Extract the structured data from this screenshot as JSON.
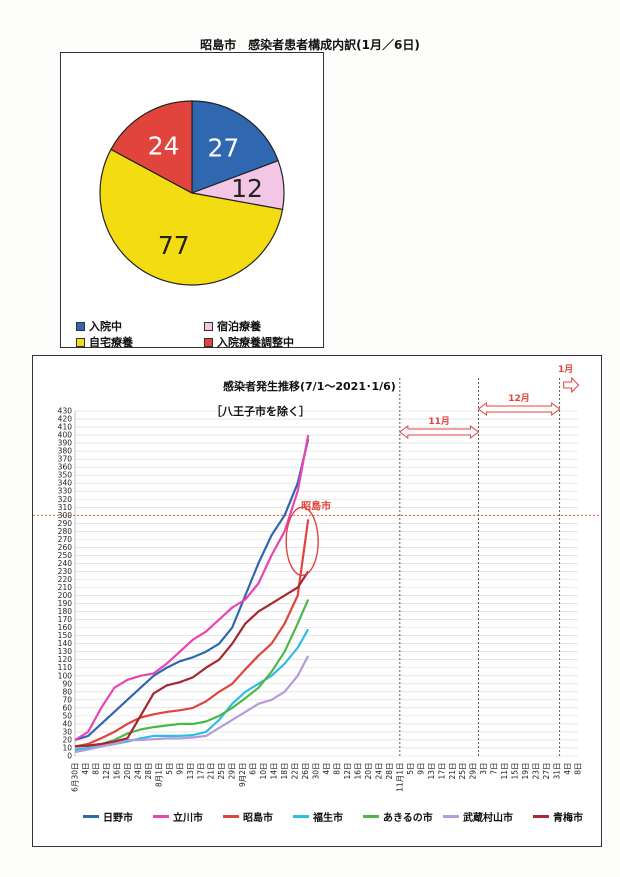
{
  "page_title": "昭島市　感染者患者構成内訳(1月／6日)",
  "chart_data": [
    {
      "type": "pie",
      "title": "昭島市　感染者患者構成内訳(1月／6日)",
      "slices": [
        {
          "label": "入院中",
          "value": 27,
          "color": "#2f67b1"
        },
        {
          "label": "宿泊療養",
          "value": 12,
          "color": "#f3c6e6"
        },
        {
          "label": "自宅療養",
          "value": 77,
          "color": "#f4dc12"
        },
        {
          "label": "入院療養調整中",
          "value": 24,
          "color": "#e0443c"
        }
      ]
    },
    {
      "type": "line",
      "title": "感染者発生推移(7/1～2021･1/6)",
      "subtitle": "［八王子市を除く］",
      "ylim": [
        0,
        430
      ],
      "y_ticks": [
        0,
        10,
        20,
        30,
        40,
        50,
        60,
        70,
        80,
        90,
        100,
        110,
        120,
        130,
        140,
        150,
        160,
        170,
        180,
        190,
        200,
        210,
        220,
        230,
        240,
        250,
        260,
        270,
        280,
        290,
        300,
        310,
        320,
        330,
        340,
        350,
        360,
        370,
        380,
        390,
        400,
        410,
        420,
        430
      ],
      "x_labels": [
        "6月30日",
        "4日",
        "8日",
        "12日",
        "16日",
        "20日",
        "24日",
        "28日",
        "8月1日",
        "5日",
        "9日",
        "13日",
        "17日",
        "21日",
        "25日",
        "29日",
        "9月2日",
        "6日",
        "10日",
        "14日",
        "18日",
        "22日",
        "26日",
        "30日",
        "4日",
        "8日",
        "12日",
        "16日",
        "20日",
        "24日",
        "28日",
        "11月1日",
        "5日",
        "9日",
        "13日",
        "17日",
        "21日",
        "25日",
        "29日",
        "3日",
        "7日",
        "11日",
        "15日",
        "19日",
        "23日",
        "27日",
        "31日",
        "4日",
        "8日"
      ],
      "month_annotations": [
        {
          "label": "11月"
        },
        {
          "label": "12月"
        },
        {
          "label": "1月"
        }
      ],
      "reference_line": {
        "y": 300,
        "color": "#e0443c"
      },
      "callout": {
        "label": "昭島市",
        "color": "#e0443c"
      },
      "series": [
        {
          "name": "日野市",
          "color": "#2f67b1",
          "points": [
            [
              0,
              20
            ],
            [
              5,
              25
            ],
            [
              10,
              40
            ],
            [
              15,
              55
            ],
            [
              20,
              70
            ],
            [
              25,
              85
            ],
            [
              30,
              100
            ],
            [
              35,
              110
            ],
            [
              40,
              118
            ],
            [
              45,
              123
            ],
            [
              50,
              130
            ],
            [
              55,
              140
            ],
            [
              60,
              160
            ],
            [
              65,
              200
            ],
            [
              70,
              240
            ],
            [
              75,
              275
            ],
            [
              80,
              300
            ],
            [
              85,
              340
            ],
            [
              89,
              395
            ]
          ]
        },
        {
          "name": "立川市",
          "color": "#e845b0",
          "points": [
            [
              0,
              20
            ],
            [
              5,
              30
            ],
            [
              10,
              60
            ],
            [
              15,
              85
            ],
            [
              20,
              95
            ],
            [
              25,
              100
            ],
            [
              30,
              103
            ],
            [
              35,
              115
            ],
            [
              40,
              130
            ],
            [
              45,
              145
            ],
            [
              50,
              155
            ],
            [
              55,
              170
            ],
            [
              60,
              185
            ],
            [
              65,
              195
            ],
            [
              70,
              215
            ],
            [
              75,
              250
            ],
            [
              80,
              280
            ],
            [
              85,
              330
            ],
            [
              89,
              400
            ]
          ]
        },
        {
          "name": "昭島市",
          "color": "#e0443c",
          "points": [
            [
              0,
              12
            ],
            [
              5,
              15
            ],
            [
              10,
              22
            ],
            [
              15,
              30
            ],
            [
              20,
              40
            ],
            [
              25,
              48
            ],
            [
              30,
              52
            ],
            [
              35,
              55
            ],
            [
              40,
              57
            ],
            [
              45,
              60
            ],
            [
              50,
              68
            ],
            [
              55,
              80
            ],
            [
              60,
              90
            ],
            [
              65,
              108
            ],
            [
              70,
              125
            ],
            [
              75,
              140
            ],
            [
              80,
              165
            ],
            [
              85,
              200
            ],
            [
              89,
              295
            ]
          ]
        },
        {
          "name": "福生市",
          "color": "#2dbde6",
          "points": [
            [
              0,
              8
            ],
            [
              5,
              10
            ],
            [
              10,
              12
            ],
            [
              15,
              15
            ],
            [
              20,
              18
            ],
            [
              25,
              22
            ],
            [
              30,
              25
            ],
            [
              35,
              25
            ],
            [
              40,
              25
            ],
            [
              45,
              26
            ],
            [
              50,
              30
            ],
            [
              55,
              45
            ],
            [
              60,
              65
            ],
            [
              65,
              80
            ],
            [
              70,
              90
            ],
            [
              75,
              100
            ],
            [
              80,
              115
            ],
            [
              85,
              135
            ],
            [
              89,
              158
            ]
          ]
        },
        {
          "name": "あきるの市",
          "color": "#4bb848",
          "points": [
            [
              0,
              12
            ],
            [
              5,
              13
            ],
            [
              10,
              15
            ],
            [
              15,
              20
            ],
            [
              20,
              28
            ],
            [
              25,
              33
            ],
            [
              30,
              36
            ],
            [
              35,
              38
            ],
            [
              40,
              40
            ],
            [
              45,
              40
            ],
            [
              50,
              43
            ],
            [
              55,
              50
            ],
            [
              60,
              60
            ],
            [
              65,
              72
            ],
            [
              70,
              85
            ],
            [
              75,
              105
            ],
            [
              80,
              130
            ],
            [
              85,
              165
            ],
            [
              89,
              195
            ]
          ]
        },
        {
          "name": "武蔵村山市",
          "color": "#b79ad9",
          "points": [
            [
              0,
              5
            ],
            [
              5,
              8
            ],
            [
              10,
              12
            ],
            [
              15,
              15
            ],
            [
              20,
              20
            ],
            [
              25,
              20
            ],
            [
              30,
              21
            ],
            [
              35,
              22
            ],
            [
              40,
              22
            ],
            [
              45,
              23
            ],
            [
              50,
              25
            ],
            [
              55,
              35
            ],
            [
              60,
              45
            ],
            [
              65,
              55
            ],
            [
              70,
              65
            ],
            [
              75,
              70
            ],
            [
              80,
              80
            ],
            [
              85,
              100
            ],
            [
              89,
              125
            ]
          ]
        },
        {
          "name": "青梅市",
          "color": "#a8262f",
          "points": [
            [
              0,
              12
            ],
            [
              5,
              13
            ],
            [
              10,
              15
            ],
            [
              15,
              18
            ],
            [
              20,
              22
            ],
            [
              25,
              50
            ],
            [
              30,
              78
            ],
            [
              35,
              88
            ],
            [
              40,
              92
            ],
            [
              45,
              98
            ],
            [
              50,
              110
            ],
            [
              55,
              120
            ],
            [
              60,
              140
            ],
            [
              65,
              165
            ],
            [
              70,
              180
            ],
            [
              75,
              190
            ],
            [
              80,
              200
            ],
            [
              85,
              210
            ],
            [
              89,
              230
            ]
          ]
        }
      ]
    }
  ]
}
